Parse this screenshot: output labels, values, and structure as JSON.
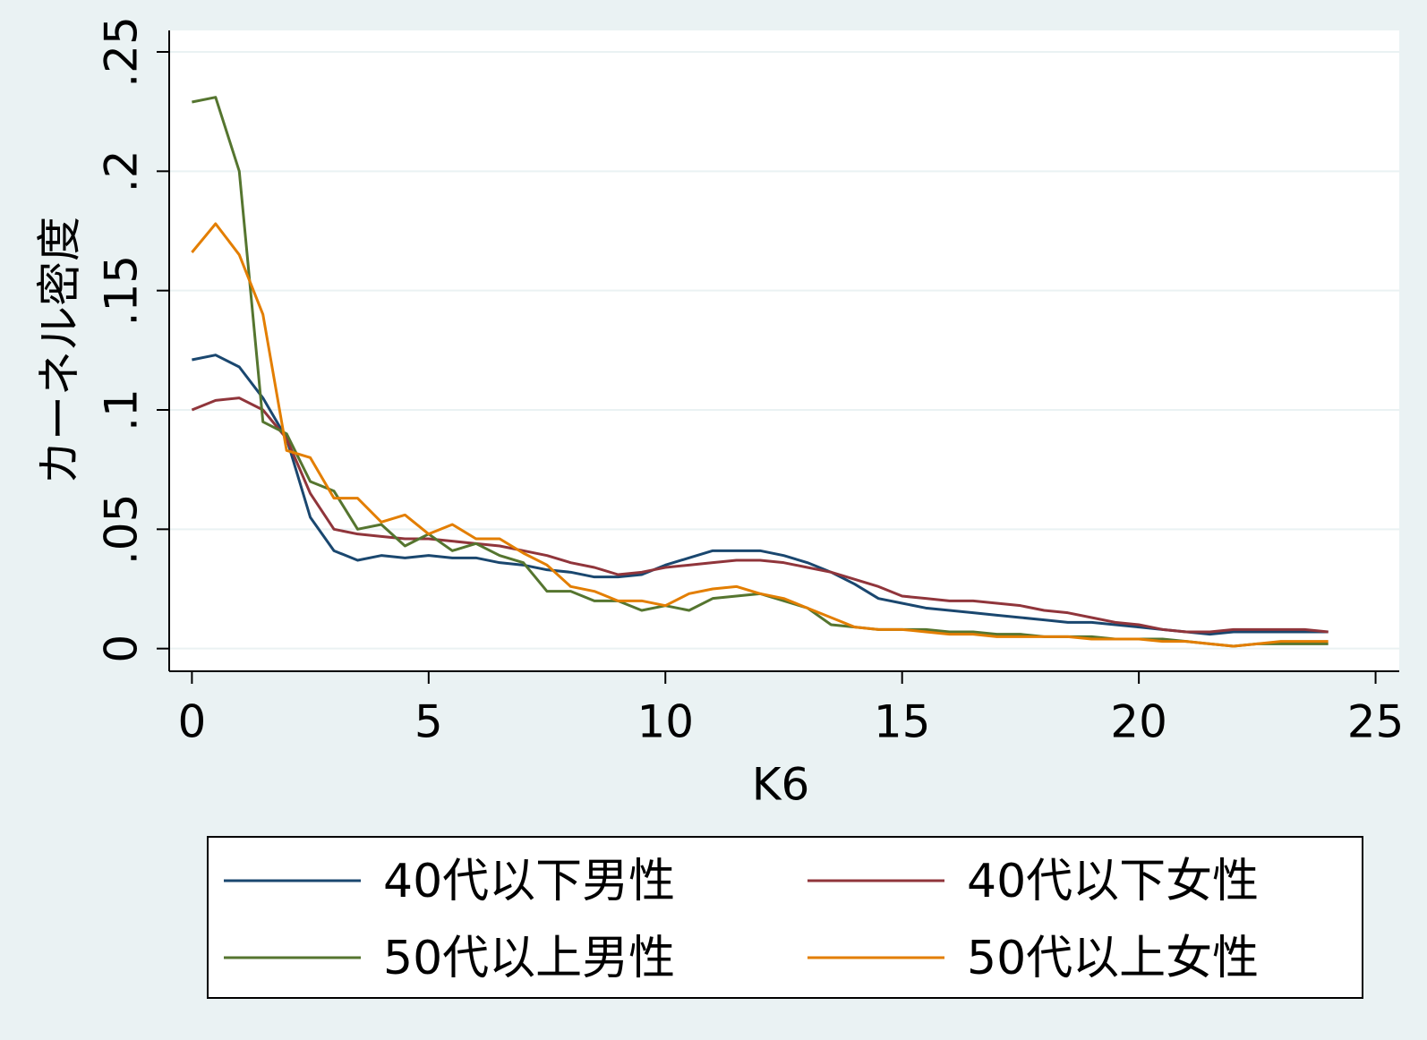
{
  "chart_data": {
    "type": "line",
    "x_label": "K6",
    "y_label": "カーネル密度",
    "x": [
      0,
      0.5,
      1,
      1.5,
      2,
      2.5,
      3,
      3.5,
      4,
      4.5,
      5,
      5.5,
      6,
      6.5,
      7,
      7.5,
      8,
      8.5,
      9,
      9.5,
      10,
      10.5,
      11,
      11.5,
      12,
      12.5,
      13,
      13.5,
      14,
      14.5,
      15,
      15.5,
      16,
      16.5,
      17,
      17.5,
      18,
      18.5,
      19,
      19.5,
      20,
      20.5,
      21,
      21.5,
      22,
      22.5,
      23,
      23.5,
      24
    ],
    "series": [
      {
        "name": "40代以下男性",
        "color": "#1a476f",
        "values": [
          0.121,
          0.123,
          0.118,
          0.105,
          0.088,
          0.055,
          0.041,
          0.037,
          0.039,
          0.038,
          0.039,
          0.038,
          0.038,
          0.036,
          0.035,
          0.033,
          0.032,
          0.03,
          0.03,
          0.031,
          0.035,
          0.038,
          0.041,
          0.041,
          0.041,
          0.039,
          0.036,
          0.032,
          0.027,
          0.021,
          0.019,
          0.017,
          0.016,
          0.015,
          0.014,
          0.013,
          0.012,
          0.011,
          0.011,
          0.01,
          0.009,
          0.008,
          0.007,
          0.006,
          0.007,
          0.007,
          0.007,
          0.007,
          0.007
        ]
      },
      {
        "name": "40代以下女性",
        "color": "#90353b",
        "values": [
          0.1,
          0.104,
          0.105,
          0.1,
          0.088,
          0.065,
          0.05,
          0.048,
          0.047,
          0.046,
          0.046,
          0.045,
          0.044,
          0.043,
          0.041,
          0.039,
          0.036,
          0.034,
          0.031,
          0.032,
          0.034,
          0.035,
          0.036,
          0.037,
          0.037,
          0.036,
          0.034,
          0.032,
          0.029,
          0.026,
          0.022,
          0.021,
          0.02,
          0.02,
          0.019,
          0.018,
          0.016,
          0.015,
          0.013,
          0.011,
          0.01,
          0.008,
          0.007,
          0.007,
          0.008,
          0.008,
          0.008,
          0.008,
          0.007
        ]
      },
      {
        "name": "50代以上男性",
        "color": "#55752f",
        "values": [
          0.229,
          0.231,
          0.2,
          0.095,
          0.09,
          0.07,
          0.066,
          0.05,
          0.052,
          0.043,
          0.048,
          0.041,
          0.044,
          0.039,
          0.036,
          0.024,
          0.024,
          0.02,
          0.02,
          0.016,
          0.018,
          0.016,
          0.021,
          0.022,
          0.023,
          0.02,
          0.017,
          0.01,
          0.009,
          0.008,
          0.008,
          0.008,
          0.007,
          0.007,
          0.006,
          0.006,
          0.005,
          0.005,
          0.005,
          0.004,
          0.004,
          0.004,
          0.003,
          0.002,
          0.001,
          0.002,
          0.002,
          0.002,
          0.002
        ]
      },
      {
        "name": "50代以上女性",
        "color": "#e37e00",
        "values": [
          0.166,
          0.178,
          0.165,
          0.14,
          0.083,
          0.08,
          0.063,
          0.063,
          0.053,
          0.056,
          0.048,
          0.052,
          0.046,
          0.046,
          0.04,
          0.035,
          0.026,
          0.024,
          0.02,
          0.02,
          0.018,
          0.023,
          0.025,
          0.026,
          0.023,
          0.021,
          0.017,
          0.013,
          0.009,
          0.008,
          0.008,
          0.007,
          0.006,
          0.006,
          0.005,
          0.005,
          0.005,
          0.005,
          0.004,
          0.004,
          0.004,
          0.003,
          0.003,
          0.002,
          0.001,
          0.002,
          0.003,
          0.003,
          0.003
        ]
      }
    ],
    "xlim": [
      -0.48,
      25.5
    ],
    "ylim": [
      -0.0095,
      0.259
    ],
    "xticks": [
      0,
      5,
      10,
      15,
      20,
      25
    ],
    "yticks": [
      0,
      {
        "value": 0.05,
        "label": ".05"
      },
      {
        "value": 0.1,
        "label": ".1"
      },
      {
        "value": 0.15,
        "label": ".15"
      },
      {
        "value": 0.2,
        "label": ".2"
      },
      {
        "value": 0.25,
        "label": ".25"
      }
    ],
    "grid": true
  }
}
